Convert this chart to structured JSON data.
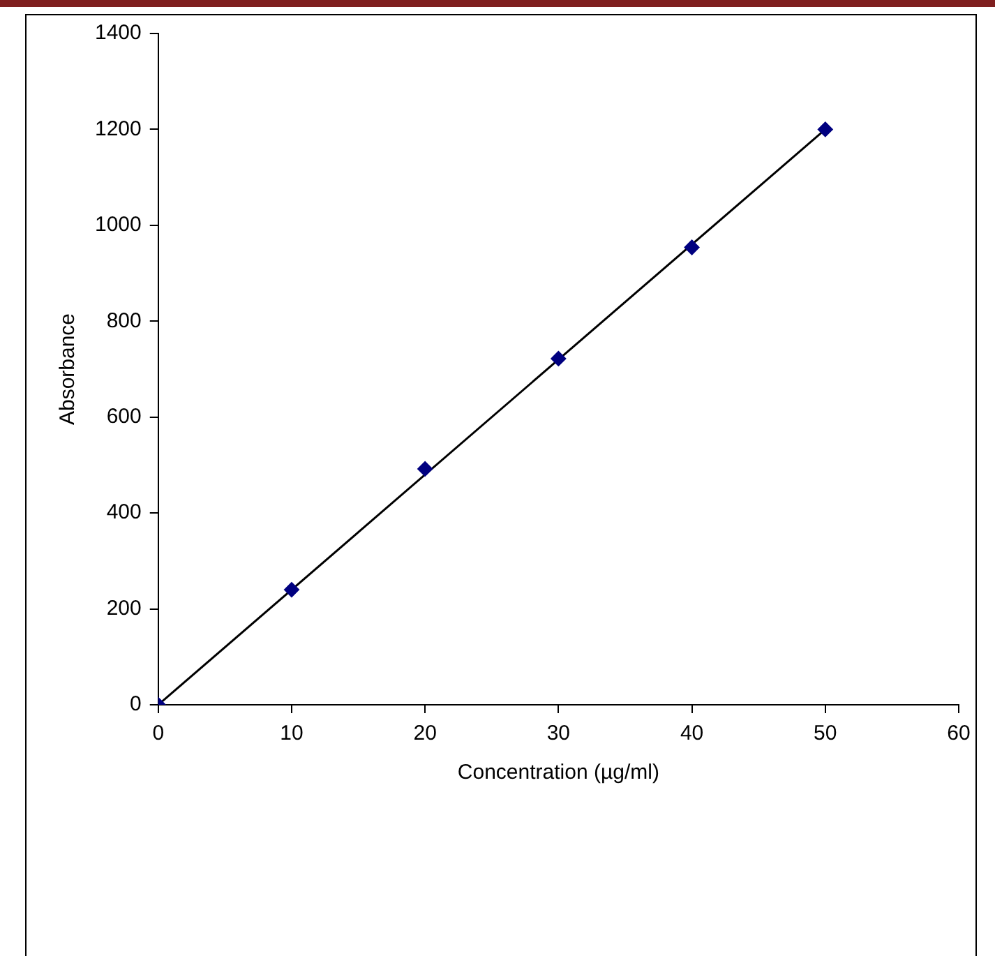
{
  "chart_data": {
    "type": "scatter",
    "xlabel": "Concentration (µg/ml)",
    "ylabel": "Absorbance",
    "x": [
      0,
      10,
      20,
      30,
      40,
      50
    ],
    "series": [
      {
        "type": "scatter",
        "color": "#000080",
        "values": [
          0,
          240,
          492,
          722,
          954,
          1200
        ],
        "marker": "diamond"
      },
      {
        "type": "line",
        "color": "#000000",
        "x": [
          0,
          50
        ],
        "values": [
          0,
          1200
        ],
        "marker": "none"
      }
    ],
    "xlim": [
      0,
      60
    ],
    "xticks": [
      0,
      10,
      20,
      30,
      40,
      50,
      60
    ],
    "ylim": [
      0,
      1400
    ],
    "yticks": [
      0,
      200,
      400,
      600,
      800,
      1000,
      1200,
      1400
    ],
    "grid": false,
    "legend": false
  }
}
